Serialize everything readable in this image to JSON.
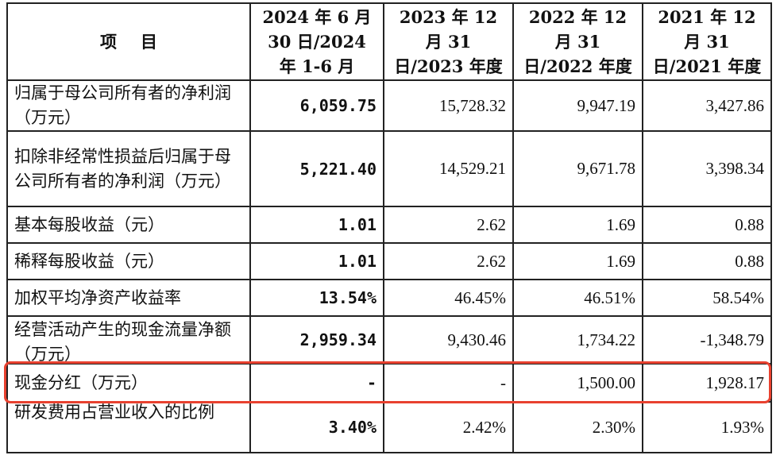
{
  "table": {
    "headers": [
      "项目",
      "2024 年 6 月 30 日/2024 年 1-6 月",
      "2023 年 12 月 31 日/2023 年度",
      "2022 年 12 月 31 日/2022 年度",
      "2021 年 12 月 31 日/2021 年度"
    ],
    "rows": [
      {
        "label": "归属于母公司所有者的净利润（万元）",
        "values": [
          "6,059.75",
          "15,728.32",
          "9,947.19",
          "3,427.86"
        ]
      },
      {
        "label": "扣除非经常性损益后归属于母公司所有者的净利润（万元）",
        "values": [
          "5,221.40",
          "14,529.21",
          "9,671.78",
          "3,398.34"
        ]
      },
      {
        "label": "基本每股收益（元）",
        "values": [
          "1.01",
          "2.62",
          "1.69",
          "0.88"
        ]
      },
      {
        "label": "稀释每股收益（元）",
        "values": [
          "1.01",
          "2.62",
          "1.69",
          "0.88"
        ]
      },
      {
        "label": "加权平均净资产收益率",
        "values": [
          "13.54%",
          "46.45%",
          "46.51%",
          "58.54%"
        ]
      },
      {
        "label": "经营活动产生的现金流量净额（万元）",
        "values": [
          "2,959.34",
          "9,430.46",
          "1,734.22",
          "-1,348.79"
        ]
      },
      {
        "label": "现金分红（万元）",
        "values": [
          "-",
          "-",
          "1,500.00",
          "1,928.17"
        ]
      },
      {
        "label": "研发费用占营业收入的比例",
        "values": [
          "3.40%",
          "2.42%",
          "2.30%",
          "1.93%"
        ]
      }
    ]
  },
  "highlight_color": "#e8412f"
}
